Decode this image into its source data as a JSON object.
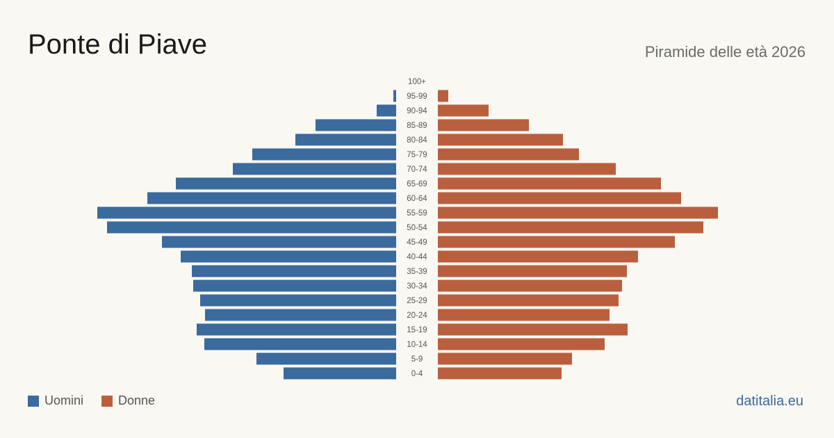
{
  "header": {
    "title": "Ponte di Piave",
    "subtitle": "Piramide delle età 2026"
  },
  "legend": {
    "men_label": "Uomini",
    "women_label": "Donne"
  },
  "brand": "datitalia.eu",
  "colors": {
    "men": "#3b6a9c",
    "women": "#b95f3e",
    "background": "#faf8f3"
  },
  "chart_data": {
    "type": "bar",
    "orientation": "horizontal-pyramid",
    "categories": [
      "100+",
      "95-99",
      "90-94",
      "85-89",
      "80-84",
      "75-79",
      "70-74",
      "65-69",
      "60-64",
      "55-59",
      "50-54",
      "45-49",
      "40-44",
      "35-39",
      "30-34",
      "25-29",
      "20-24",
      "15-19",
      "10-14",
      "5-9",
      "0-4"
    ],
    "series": [
      {
        "name": "Uomini",
        "values": [
          0,
          4,
          28,
          116,
          145,
          207,
          235,
          317,
          358,
          430,
          416,
          337,
          310,
          294,
          292,
          282,
          275,
          287,
          276,
          201,
          162
        ]
      },
      {
        "name": "Donne",
        "values": [
          0,
          15,
          73,
          131,
          180,
          203,
          256,
          321,
          350,
          403,
          382,
          341,
          288,
          272,
          265,
          260,
          247,
          273,
          240,
          193,
          178
        ]
      }
    ],
    "max_value": 430
  }
}
